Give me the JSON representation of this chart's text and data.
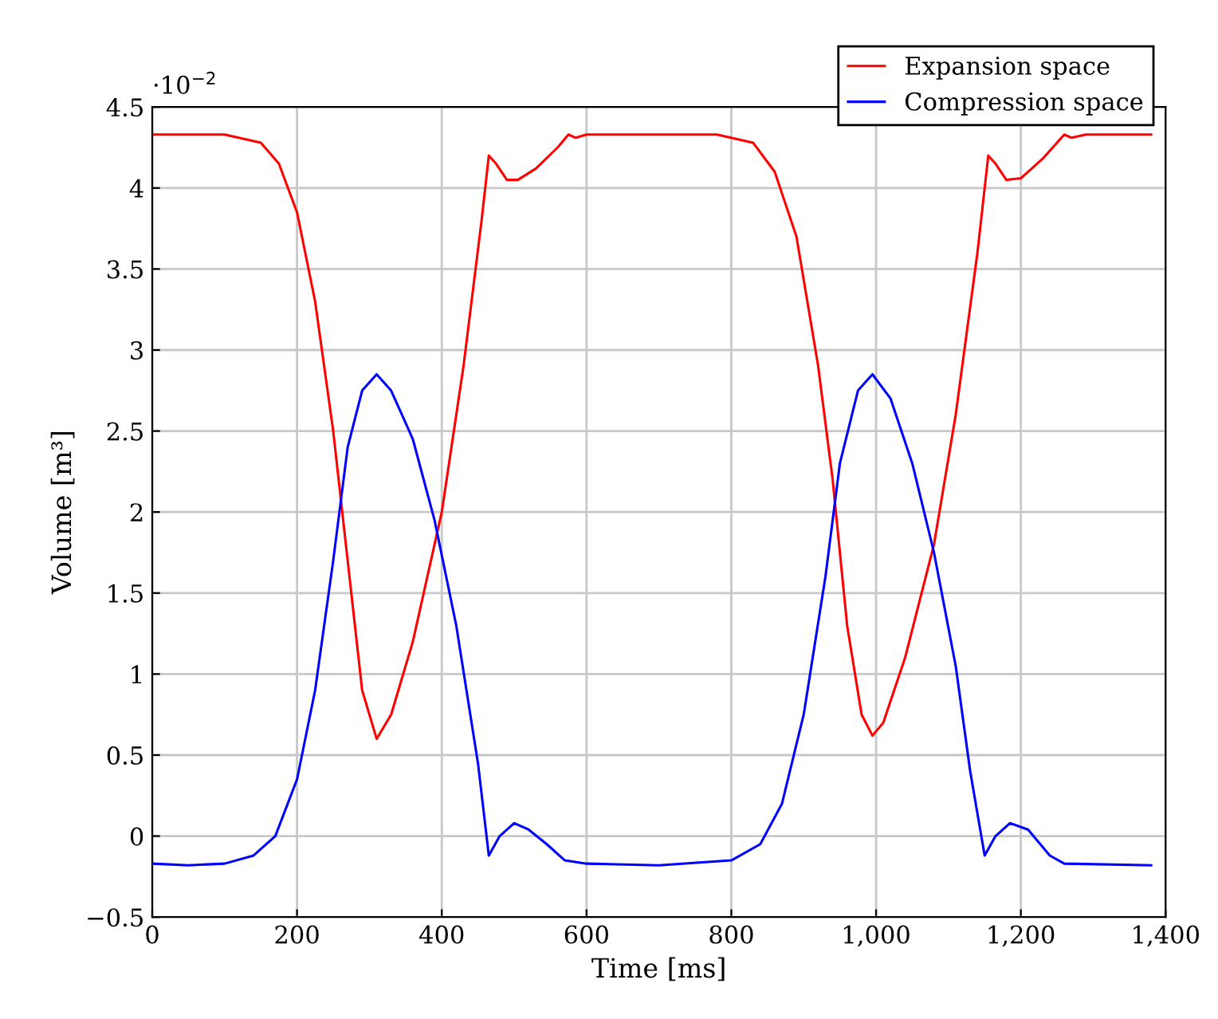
{
  "chart_data": {
    "type": "line",
    "xlabel": "Time [ms]",
    "ylabel": "Volume [m³]",
    "annotations": [
      "·10$^{−2}$"
    ],
    "xlim": [
      0,
      1400
    ],
    "ylim": [
      -0.5,
      4.5
    ],
    "xticks": [
      0,
      200,
      400,
      600,
      800,
      {
        "value": 1000,
        "label": "1,000"
      },
      {
        "value": 1200,
        "label": "1,200"
      },
      {
        "value": 1400,
        "label": "1,400"
      }
    ],
    "yticks": [
      {
        "value": -0.5,
        "label": "−0.5"
      },
      0,
      0.5,
      1,
      1.5,
      2,
      2.5,
      3,
      3.5,
      4,
      4.5
    ],
    "grid": true,
    "legend": "top right",
    "marker": "none",
    "line_style": "solid",
    "series": [
      {
        "name": "Expansion space",
        "color": "#ff0000",
        "x": [
          0,
          100,
          150,
          175,
          200,
          225,
          250,
          270,
          290,
          310,
          330,
          360,
          400,
          430,
          455,
          465,
          475,
          490,
          505,
          530,
          560,
          575,
          585,
          600,
          780,
          830,
          860,
          890,
          920,
          940,
          960,
          980,
          995,
          1010,
          1040,
          1080,
          1110,
          1140,
          1155,
          1165,
          1180,
          1200,
          1230,
          1260,
          1270,
          1290,
          1380
        ],
        "values": [
          4.33,
          4.33,
          4.28,
          4.15,
          3.85,
          3.3,
          2.5,
          1.7,
          0.9,
          0.6,
          0.75,
          1.2,
          2.0,
          2.9,
          3.8,
          4.2,
          4.15,
          4.05,
          4.05,
          4.12,
          4.25,
          4.33,
          4.31,
          4.33,
          4.33,
          4.28,
          4.1,
          3.7,
          2.9,
          2.2,
          1.3,
          0.75,
          0.62,
          0.7,
          1.1,
          1.8,
          2.6,
          3.6,
          4.2,
          4.15,
          4.05,
          4.06,
          4.18,
          4.33,
          4.31,
          4.33,
          4.33
        ]
      },
      {
        "name": "Compression space",
        "color": "#0000ff",
        "x": [
          0,
          50,
          100,
          140,
          170,
          200,
          225,
          250,
          270,
          290,
          310,
          330,
          360,
          390,
          420,
          450,
          465,
          480,
          500,
          520,
          545,
          570,
          600,
          700,
          800,
          840,
          870,
          900,
          930,
          950,
          975,
          995,
          1020,
          1050,
          1080,
          1110,
          1130,
          1150,
          1165,
          1185,
          1210,
          1240,
          1260,
          1380
        ],
        "values": [
          -0.17,
          -0.18,
          -0.17,
          -0.12,
          0.0,
          0.35,
          0.9,
          1.7,
          2.4,
          2.75,
          2.85,
          2.75,
          2.45,
          1.95,
          1.3,
          0.45,
          -0.12,
          0.0,
          0.08,
          0.04,
          -0.05,
          -0.15,
          -0.17,
          -0.18,
          -0.15,
          -0.05,
          0.2,
          0.75,
          1.6,
          2.3,
          2.75,
          2.85,
          2.7,
          2.3,
          1.75,
          1.05,
          0.4,
          -0.12,
          0.0,
          0.08,
          0.04,
          -0.12,
          -0.17,
          -0.18
        ]
      }
    ]
  }
}
